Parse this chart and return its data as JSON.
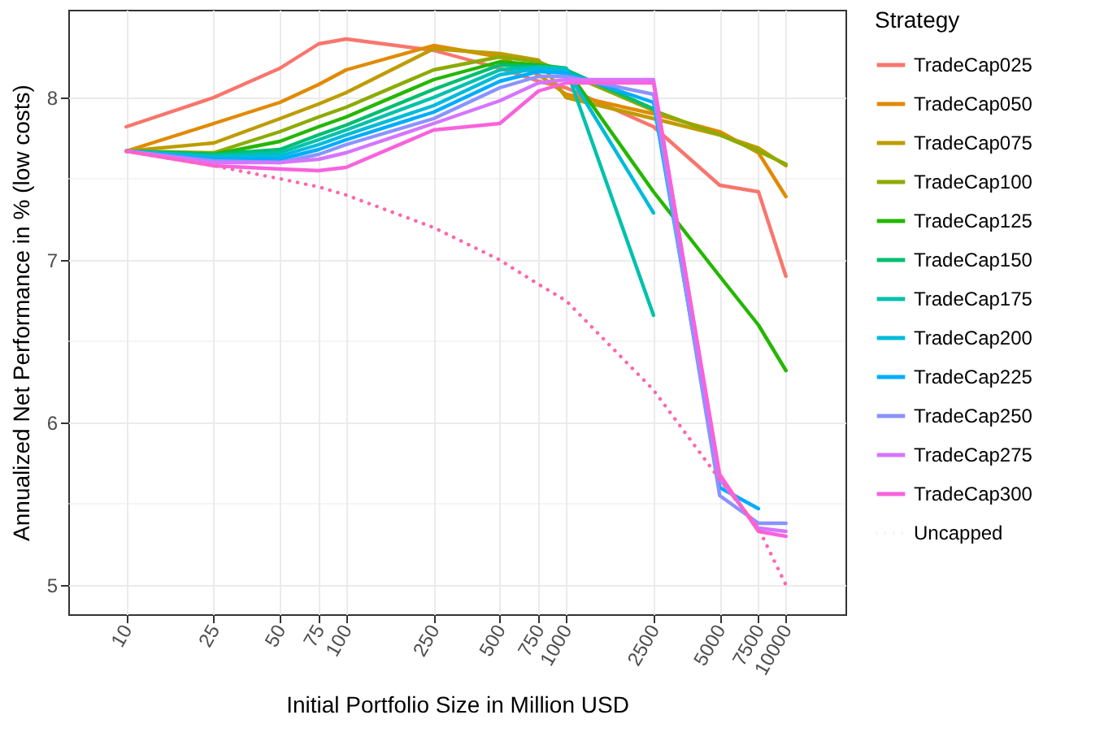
{
  "chart_data": {
    "type": "line",
    "xlabel": "Initial Portfolio Size in Million USD",
    "ylabel": "Annualized Net Performance in % (low costs)",
    "legend_title": "Strategy",
    "legend": "right",
    "grid": true,
    "log": "x",
    "line_style": "solid",
    "marker": "none",
    "x": [
      10,
      25,
      50,
      75,
      100,
      250,
      500,
      750,
      1000,
      2500,
      5000,
      7500,
      10000
    ],
    "xlim": [
      5.45,
      18660
    ],
    "xticks": [
      10,
      25,
      50,
      75,
      100,
      250,
      500,
      750,
      1000,
      2500,
      5000,
      7500,
      10000
    ],
    "ylim": [
      4.82,
      8.54
    ],
    "yticks": [
      5,
      6,
      7,
      8
    ],
    "series": [
      {
        "name": "TradeCap025",
        "color": "#f8766d",
        "values": [
          7.82,
          8.0,
          8.18,
          8.33,
          8.36,
          8.29,
          8.18,
          8.1,
          8.06,
          7.82,
          7.46,
          7.42,
          6.9
        ]
      },
      {
        "name": "TradeCap050",
        "color": "#e18a00",
        "values": [
          7.67,
          7.84,
          7.97,
          8.08,
          8.17,
          8.32,
          8.25,
          8.14,
          8.02,
          7.9,
          7.79,
          7.66,
          7.39
        ]
      },
      {
        "name": "TradeCap075",
        "color": "#be9c00",
        "values": [
          7.67,
          7.72,
          7.87,
          7.96,
          8.03,
          8.3,
          8.27,
          8.23,
          8.0,
          7.87,
          7.77,
          7.69,
          7.58
        ]
      },
      {
        "name": "TradeCap100",
        "color": "#8cab00",
        "values": [
          7.67,
          7.66,
          7.79,
          7.88,
          7.94,
          8.17,
          8.25,
          8.22,
          8.15,
          7.92,
          7.77,
          7.67,
          7.59
        ]
      },
      {
        "name": "TradeCap125",
        "color": "#24b700",
        "values": [
          7.67,
          7.65,
          7.73,
          7.82,
          7.88,
          8.11,
          8.22,
          8.2,
          8.18,
          7.42,
          6.9,
          6.6,
          6.32
        ]
      },
      {
        "name": "TradeCap150",
        "color": "#00be70",
        "values": [
          7.67,
          7.65,
          7.68,
          7.77,
          7.83,
          8.05,
          8.2,
          8.19,
          8.17,
          7.93,
          null,
          null,
          null
        ]
      },
      {
        "name": "TradeCap175",
        "color": "#00c1ab",
        "values": [
          7.67,
          7.64,
          7.66,
          7.74,
          7.8,
          8.0,
          8.17,
          8.19,
          8.18,
          6.66,
          null,
          null,
          null
        ]
      },
      {
        "name": "TradeCap200",
        "color": "#00bbda",
        "values": [
          7.67,
          7.63,
          7.64,
          7.71,
          7.77,
          7.95,
          8.14,
          8.18,
          8.17,
          7.29,
          null,
          null,
          null
        ]
      },
      {
        "name": "TradeCap225",
        "color": "#00acfc",
        "values": [
          7.67,
          7.62,
          7.62,
          7.68,
          7.74,
          7.91,
          8.1,
          8.16,
          8.15,
          7.97,
          5.6,
          5.47,
          null
        ]
      },
      {
        "name": "TradeCap250",
        "color": "#8b93ff",
        "values": [
          7.67,
          7.61,
          7.6,
          7.65,
          7.71,
          7.87,
          8.06,
          8.13,
          8.13,
          8.02,
          5.55,
          5.38,
          5.38
        ]
      },
      {
        "name": "TradeCap275",
        "color": "#d575fe",
        "values": [
          7.67,
          7.6,
          7.6,
          7.62,
          7.66,
          7.84,
          7.98,
          8.09,
          8.11,
          8.11,
          5.65,
          5.35,
          5.33
        ]
      },
      {
        "name": "TradeCap300",
        "color": "#f962dd",
        "values": [
          7.67,
          7.58,
          7.56,
          7.55,
          7.57,
          7.8,
          7.84,
          8.04,
          8.09,
          8.09,
          5.68,
          5.33,
          5.3
        ]
      },
      {
        "name": "Uncapped",
        "color": "#ff65ac",
        "line_style": "dotted",
        "values": [
          7.67,
          7.58,
          7.5,
          7.45,
          7.4,
          7.2,
          7.0,
          6.85,
          6.75,
          6.2,
          5.65,
          5.35,
          5.0
        ]
      }
    ]
  }
}
